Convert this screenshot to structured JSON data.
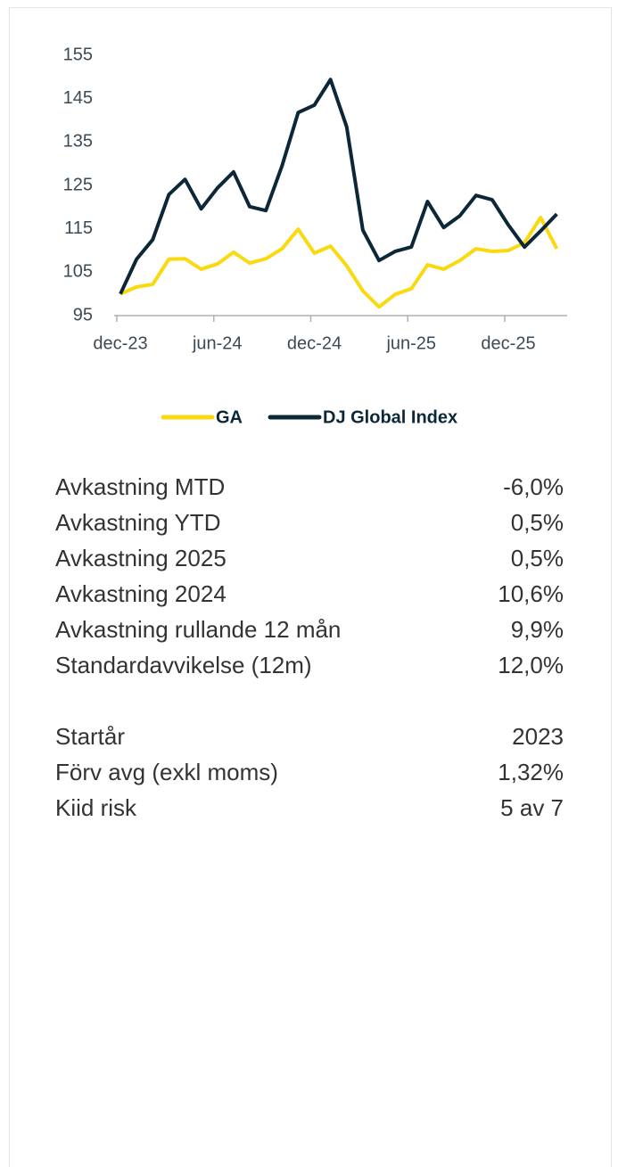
{
  "chart_data": {
    "type": "line",
    "categories": [
      "dec-23",
      null,
      null,
      null,
      null,
      null,
      "jun-24",
      null,
      null,
      null,
      null,
      null,
      "dec-24",
      null,
      null,
      null,
      null,
      null,
      "jun-25",
      null,
      null,
      null,
      null,
      null,
      "dec-25",
      null,
      null,
      null
    ],
    "series": [
      {
        "name": "GA",
        "color": "#fad90f",
        "values": [
          100,
          101.6,
          102.2,
          108,
          108.1,
          105.7,
          106.9,
          109.6,
          107.1,
          108.1,
          110.4,
          114.9,
          109.4,
          111,
          106.5,
          100.7,
          97,
          99.9,
          101.2,
          106.7,
          105.7,
          107.7,
          110.4,
          109.8,
          110,
          111.8,
          117.6,
          110.4
        ]
      },
      {
        "name": "DJ Global Index",
        "color": "#0c2838",
        "values": [
          100,
          108,
          112.5,
          122.9,
          126.4,
          119.6,
          124.4,
          128.1,
          120.1,
          119.2,
          129.5,
          141.8,
          143.5,
          149.4,
          138.5,
          114.7,
          107.7,
          109.8,
          110.8,
          121.3,
          115.3,
          118,
          122.7,
          121.7,
          115.9,
          110.8,
          114.5,
          118.4
        ]
      }
    ],
    "ylim": [
      95,
      155
    ],
    "yticks": [
      95,
      105,
      115,
      125,
      135,
      145,
      155
    ],
    "grid": false,
    "legend": "bottom"
  },
  "stats": {
    "returns": [
      {
        "label": "Avkastning MTD",
        "value": "-6,0%"
      },
      {
        "label": "Avkastning YTD",
        "value": "0,5%"
      },
      {
        "label": "Avkastning 2025",
        "value": "0,5%"
      },
      {
        "label": "Avkastning 2024",
        "value": "10,6%"
      },
      {
        "label": "Avkastning rullande 12 mån",
        "value": "9,9%"
      },
      {
        "label": "Standardavvikelse (12m)",
        "value": "12,0%"
      }
    ],
    "facts": [
      {
        "label": "Startår",
        "value": "2023"
      },
      {
        "label": "Förv avg (exkl moms)",
        "value": "1,32%"
      },
      {
        "label": "Kiid risk",
        "value": "5 av 7"
      }
    ]
  }
}
